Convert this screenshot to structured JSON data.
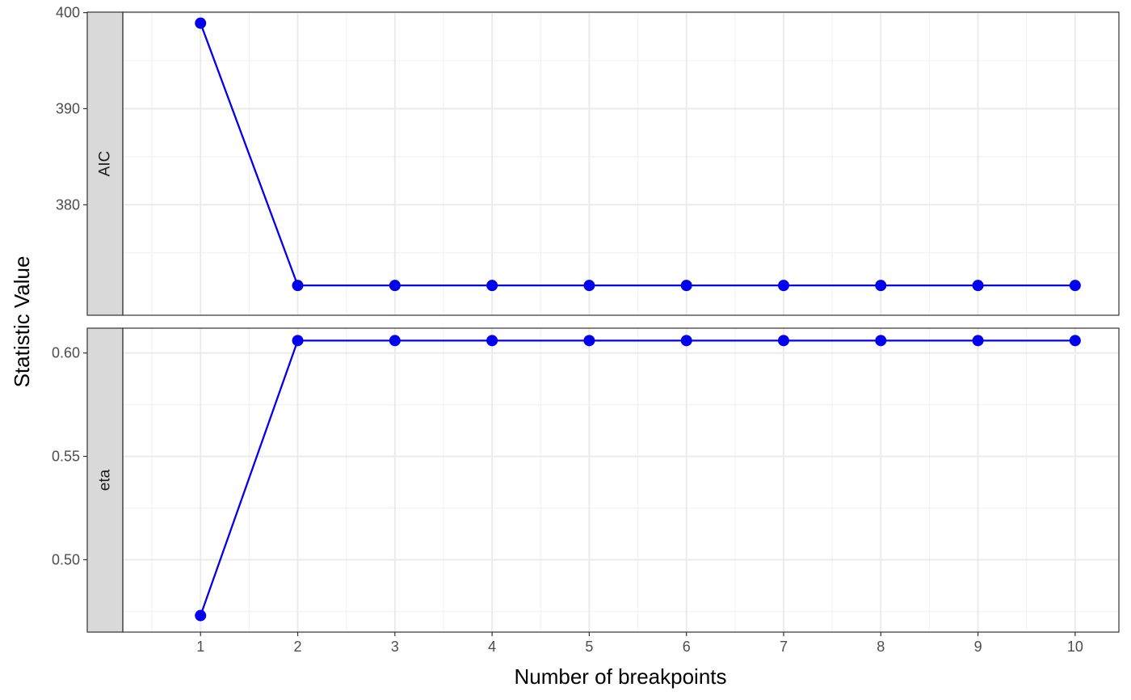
{
  "chart_data": {
    "type": "line",
    "xlabel": "Number of breakpoints",
    "ylabel": "Statistic Value",
    "x": [
      1,
      2,
      3,
      4,
      5,
      6,
      7,
      8,
      9,
      10
    ],
    "x_ticks": [
      "1",
      "2",
      "3",
      "4",
      "5",
      "6",
      "7",
      "8",
      "9",
      "10"
    ],
    "xlim": [
      0.2,
      10.45
    ],
    "grid": true,
    "line_color": "#0000ee",
    "strip_fill": "#d9d9d9",
    "panels": [
      {
        "strip_label": "AIC",
        "ylim": [
          368.5,
          400.05
        ],
        "y_ticks": [
          380,
          390,
          400
        ],
        "y_tick_labels": [
          "380",
          "390",
          "400"
        ],
        "values": [
          398.9,
          371.6,
          371.6,
          371.6,
          371.6,
          371.6,
          371.6,
          371.6,
          371.6,
          371.6
        ]
      },
      {
        "strip_label": "eta",
        "ylim": [
          0.465,
          0.612
        ],
        "y_ticks": [
          0.5,
          0.55,
          0.6
        ],
        "y_tick_labels": [
          "0.50",
          "0.55",
          "0.60"
        ],
        "values": [
          0.473,
          0.606,
          0.606,
          0.606,
          0.606,
          0.606,
          0.606,
          0.606,
          0.606,
          0.606
        ]
      }
    ]
  }
}
